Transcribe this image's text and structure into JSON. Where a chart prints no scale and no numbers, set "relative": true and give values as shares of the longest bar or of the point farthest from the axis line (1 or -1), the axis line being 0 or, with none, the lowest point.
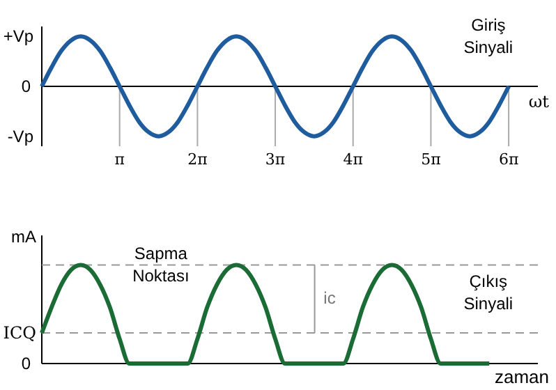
{
  "chart_data": [
    {
      "type": "line",
      "xlabel": "ωt",
      "relative": true,
      "annotations": [
        "Giriş Sinyali",
        "+Vp",
        "0",
        "-Vp"
      ],
      "categories": [
        null,
        null,
        null,
        null,
        null,
        null,
        null,
        null,
        "π",
        null,
        null,
        null,
        null,
        null,
        null,
        null,
        "2π",
        null,
        null,
        null,
        null,
        null,
        null,
        null,
        "3π",
        null,
        null,
        null,
        null,
        null,
        null,
        null,
        "4π",
        null,
        null,
        null,
        null,
        null,
        null,
        null,
        "5π",
        null,
        null,
        null,
        null,
        null,
        null,
        null,
        "6π"
      ],
      "series": [
        {
          "color": "#1f5c9e",
          "values": [
            0,
            0.38,
            0.71,
            0.92,
            1,
            0.92,
            0.71,
            0.38,
            0,
            -0.38,
            -0.71,
            -0.92,
            -1,
            -0.92,
            -0.71,
            -0.38,
            0,
            0.38,
            0.71,
            0.92,
            1,
            0.92,
            0.71,
            0.38,
            0,
            -0.38,
            -0.71,
            -0.92,
            -1,
            -0.92,
            -0.71,
            -0.38,
            0,
            0.38,
            0.71,
            0.92,
            1,
            0.92,
            0.71,
            0.38,
            0,
            -0.38,
            -0.71,
            -0.92,
            -1,
            -0.92,
            -0.71,
            -0.38,
            0
          ]
        }
      ],
      "grid": "x",
      "line_style": "solid",
      "marker": "none"
    },
    {
      "type": "line",
      "xlabel": "zaman",
      "ylabel": "mA",
      "relative": true,
      "annotations": [
        "0",
        "Sapma Noktası",
        "ic",
        "Çıkış Sinyali"
      ],
      "categories": [
        null,
        null,
        null,
        null,
        null,
        null,
        null,
        null,
        null,
        null,
        null,
        null,
        null,
        null,
        null,
        null,
        null,
        null,
        null,
        null,
        null,
        null,
        null,
        null,
        null,
        null,
        null,
        null,
        null,
        null,
        null,
        null,
        null,
        null,
        null,
        null,
        null,
        null,
        null,
        null,
        null,
        null,
        null,
        null,
        null,
        null,
        null
      ],
      "series": [
        {
          "color": "#1b6b35",
          "values": [
            0.31,
            0.57,
            0.8,
            0.95,
            1,
            0.95,
            0.8,
            0.57,
            0.25,
            0,
            0,
            0,
            0,
            0,
            0,
            0,
            0.25,
            0.57,
            0.8,
            0.95,
            1,
            0.95,
            0.8,
            0.57,
            0.25,
            0,
            0,
            0,
            0,
            0,
            0,
            0,
            0.25,
            0.57,
            0.8,
            0.95,
            1,
            0.95,
            0.8,
            0.57,
            0.25,
            0,
            0,
            0,
            0,
            0,
            0
          ]
        }
      ],
      "ref_lines": [
        {
          "axis": "y",
          "value": 0.31,
          "label": "ICQ",
          "color": "#999999",
          "line_style": "dashed"
        },
        {
          "axis": "y",
          "value": 1,
          "label": null,
          "color": "#999999",
          "line_style": "dashed"
        }
      ],
      "line_style": "solid",
      "marker": "none"
    }
  ]
}
